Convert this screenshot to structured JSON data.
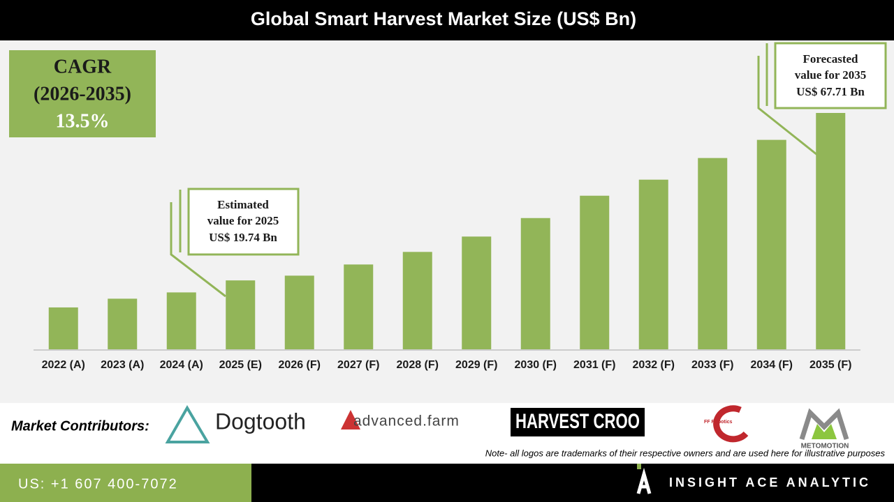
{
  "chart_data": {
    "type": "bar",
    "title": "Global Smart Harvest Market Size (US$ Bn)",
    "categories": [
      "2022 (A)",
      "2023 (A)",
      "2024 (A)",
      "2025 (E)",
      "2026 (F)",
      "2027 (F)",
      "2028 (F)",
      "2029 (F)",
      "2030 (F)",
      "2031 (F)",
      "2032 (F)",
      "2033 (F)",
      "2034 (F)",
      "2035 (F)"
    ],
    "values": [
      12.0,
      14.5,
      16.3,
      19.74,
      21.1,
      24.3,
      27.9,
      32.3,
      37.6,
      44.0,
      48.6,
      54.8,
      60.0,
      67.71
    ],
    "color": "#92b558",
    "annotations": [
      {
        "lines": [
          "Estimated",
          "value for 2025",
          "US$ 19.74 Bn"
        ]
      },
      {
        "lines": [
          "Forecasted",
          "value for 2035",
          "US$ 67.71 Bn"
        ]
      }
    ]
  },
  "cagr": {
    "label": "CAGR",
    "period": "(2026-2035)",
    "value": "13.5%"
  },
  "contributors": {
    "label": "Market Contributors:",
    "logos": [
      "Dogtooth",
      "advanced.farm",
      "HARVEST CROO",
      "FF Robotics",
      "METOMOTION"
    ]
  },
  "note": "Note- all logos are trademarks of their respective owners and are used here for illustrative purposes",
  "footer": {
    "phone": "US: +1 607 400-7072",
    "brand": "INSIGHT ACE ANALYTIC"
  }
}
